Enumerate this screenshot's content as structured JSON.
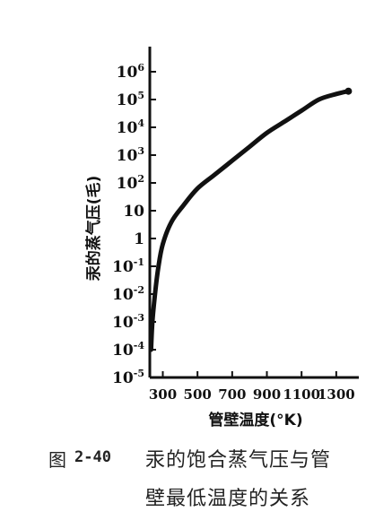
{
  "chart_data": {
    "type": "line",
    "title": "",
    "ylabel": "汞的蒸气压(毛)",
    "xlabel": "管壁温度(°K)",
    "y_scale": "log",
    "xlim": [
      225,
      1430
    ],
    "ylim_exponent": [
      -5,
      6
    ],
    "x_ticks": [
      {
        "value": 300,
        "label": "300"
      },
      {
        "value": 500,
        "label": "500"
      },
      {
        "value": 700,
        "label": "700"
      },
      {
        "value": 900,
        "label": "900"
      },
      {
        "value": 1100,
        "label": "1100"
      },
      {
        "value": 1300,
        "label": "1300"
      }
    ],
    "y_ticks": [
      {
        "exp": -5,
        "base": "10",
        "sup": "-5"
      },
      {
        "exp": -4,
        "base": "10",
        "sup": "-4"
      },
      {
        "exp": -3,
        "base": "10",
        "sup": "-3"
      },
      {
        "exp": -2,
        "base": "10",
        "sup": "-2"
      },
      {
        "exp": -1,
        "base": "10",
        "sup": "-1"
      },
      {
        "exp": 0,
        "base": "1",
        "sup": ""
      },
      {
        "exp": 1,
        "base": "10",
        "sup": ""
      },
      {
        "exp": 2,
        "base": "10",
        "sup": "2"
      },
      {
        "exp": 3,
        "base": "10",
        "sup": "3"
      },
      {
        "exp": 4,
        "base": "10",
        "sup": "4"
      },
      {
        "exp": 5,
        "base": "10",
        "sup": "5"
      },
      {
        "exp": 6,
        "base": "10",
        "sup": "6"
      }
    ],
    "series": [
      {
        "color": "#111111",
        "points": [
          {
            "x": 232,
            "y_exp": -4.0
          },
          {
            "x": 240,
            "y_exp": -3.0
          },
          {
            "x": 255,
            "y_exp": -2.0
          },
          {
            "x": 275,
            "y_exp": -1.0
          },
          {
            "x": 300,
            "y_exp": -0.2
          },
          {
            "x": 350,
            "y_exp": 0.6
          },
          {
            "x": 420,
            "y_exp": 1.2
          },
          {
            "x": 500,
            "y_exp": 1.8
          },
          {
            "x": 600,
            "y_exp": 2.3
          },
          {
            "x": 700,
            "y_exp": 2.8
          },
          {
            "x": 800,
            "y_exp": 3.3
          },
          {
            "x": 900,
            "y_exp": 3.8
          },
          {
            "x": 1000,
            "y_exp": 4.2
          },
          {
            "x": 1100,
            "y_exp": 4.6
          },
          {
            "x": 1200,
            "y_exp": 5.0
          },
          {
            "x": 1300,
            "y_exp": 5.2
          },
          {
            "x": 1370,
            "y_exp": 5.3
          }
        ]
      }
    ],
    "grid": false,
    "legend": "none"
  },
  "caption": {
    "figure_label": "图",
    "figure_number": "2-40",
    "line1": "汞的饱合蒸气压与管",
    "line2": "壁最低温度的关系"
  }
}
